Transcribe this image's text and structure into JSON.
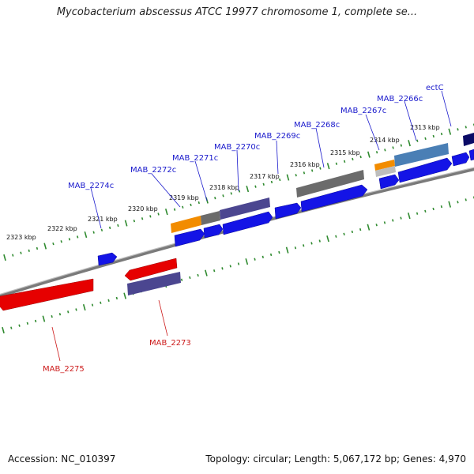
{
  "title": "Mycobacterium abscessus ATCC 19977 chromosome 1, complete se...",
  "accession": "Accession: NC_010397",
  "summary": "Topology: circular; Length: 5,067,172 bp; Genes: 4,970",
  "colors": {
    "backbone": "#8c8c8c",
    "tick": "#2f8a2f",
    "label_upper": "#1a1acc",
    "label_lower": "#cc1a1a",
    "cds": "#1414e6",
    "red_gene": "#e60000",
    "purple": "#4b4690",
    "gray": "#6b6b6b",
    "orange": "#f28c00",
    "steel": "#4a7fb5",
    "navy": "#0a0a66"
  },
  "kbp_ticks": [
    "2313 kbp",
    "2314 kbp",
    "2315 kbp",
    "2316 kbp",
    "2317 kbp",
    "2318 kbp",
    "2319 kbp",
    "2320 kbp",
    "2321 kbp",
    "2322 kbp",
    "2323 kbp"
  ],
  "gene_labels_upper": [
    "ectC",
    "MAB_2266c",
    "MAB_2267c",
    "MAB_2268c",
    "MAB_2269c",
    "MAB_2270c",
    "MAB_2271c",
    "MAB_2272c",
    "MAB_2274c"
  ],
  "gene_labels_lower": [
    "MAB_2273",
    "MAB_2275"
  ]
}
